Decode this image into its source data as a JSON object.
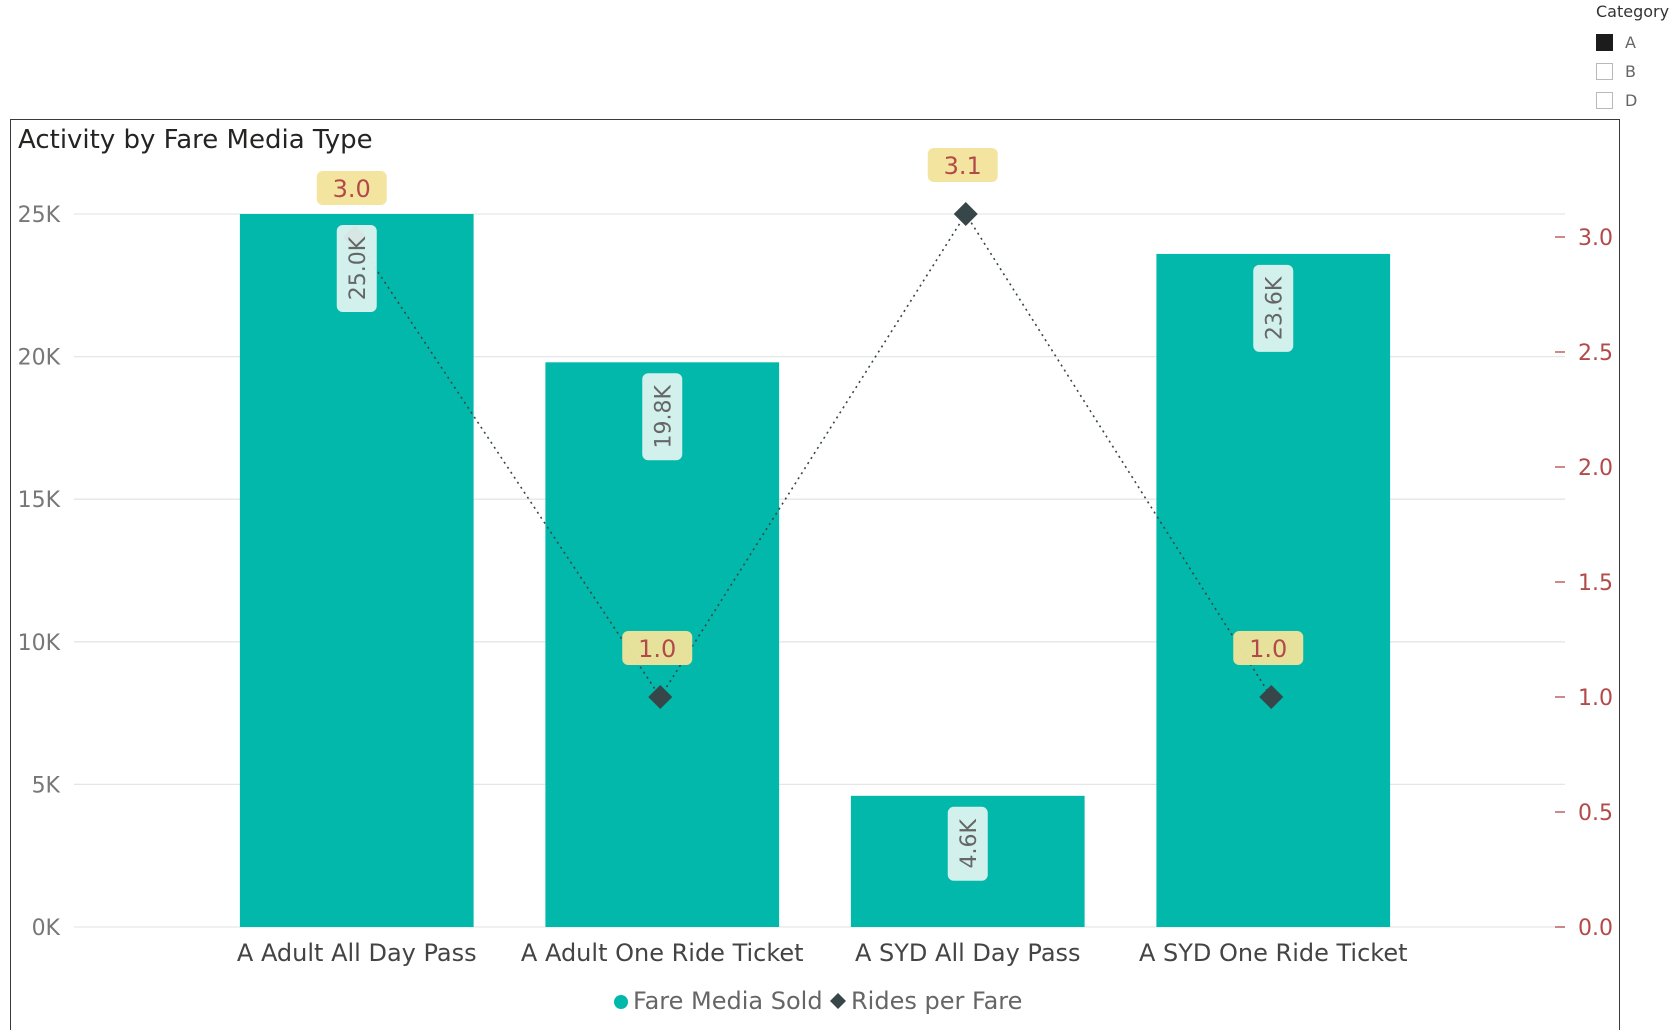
{
  "slicer": {
    "title": "Category",
    "items": [
      {
        "label": "A",
        "selected": true
      },
      {
        "label": "B",
        "selected": false
      },
      {
        "label": "D",
        "selected": false
      }
    ]
  },
  "card": {
    "title": "Activity by Fare Media Type"
  },
  "colors": {
    "bar": "#01b8aa",
    "line": "#374649",
    "secondary_axis": "#b34a4a",
    "line_label_bg": "#f2e49b",
    "line_label_text": "#b34a4a"
  },
  "chart_data": {
    "type": "bar",
    "title": "Activity by Fare Media Type",
    "categories": [
      "A Adult All Day Pass",
      "A Adult One Ride Ticket",
      "A SYD All Day Pass",
      "A SYD One Ride Ticket"
    ],
    "series": [
      {
        "name": "Fare Media Sold",
        "type": "bar",
        "axis": "left",
        "values": [
          25000,
          19800,
          4600,
          23600
        ],
        "labels": [
          "25.0K",
          "19.8K",
          "4.6K",
          "23.6K"
        ]
      },
      {
        "name": "Rides per Fare",
        "type": "line",
        "axis": "right",
        "values": [
          3.0,
          1.0,
          3.1,
          1.0
        ],
        "labels": [
          "3.0",
          "1.0",
          "3.1",
          "1.0"
        ]
      }
    ],
    "y_left": {
      "ticks": [
        "0K",
        "5K",
        "10K",
        "15K",
        "20K",
        "25K"
      ],
      "tick_values": [
        0,
        5000,
        10000,
        15000,
        20000,
        25000
      ],
      "ylim": [
        0,
        25000
      ]
    },
    "y_right": {
      "ticks": [
        "0.0",
        "0.5",
        "1.0",
        "1.5",
        "2.0",
        "2.5",
        "3.0"
      ],
      "tick_values": [
        0,
        0.5,
        1.0,
        1.5,
        2.0,
        2.5,
        3.0
      ],
      "ylim": [
        0,
        3.1
      ]
    },
    "grid": true,
    "legend_position": "bottom-center"
  }
}
